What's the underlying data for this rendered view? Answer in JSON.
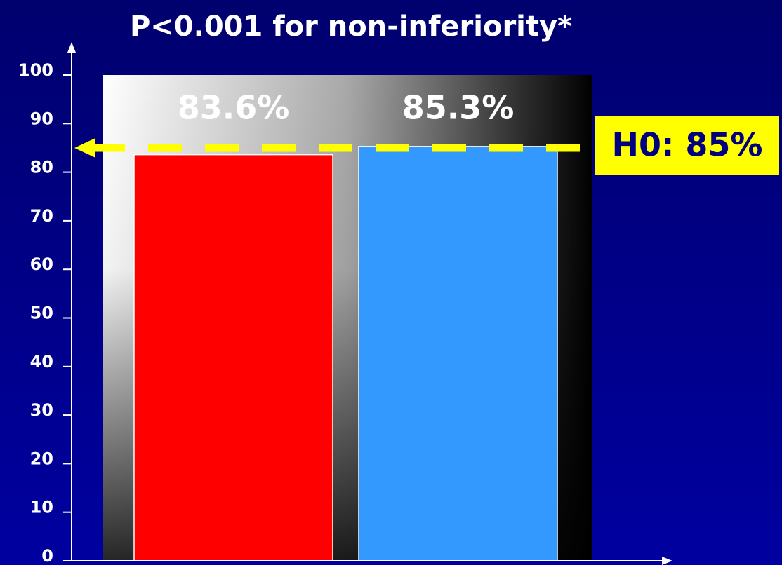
{
  "chart_data": {
    "type": "bar",
    "title": "P<0.001 for non-inferiority*",
    "categories": [
      null,
      null
    ],
    "series": [
      {
        "colors": [
          "#ff0000",
          "#3399ff"
        ],
        "values": [
          83.6,
          85.3
        ],
        "value_labels": [
          "83.6%",
          "85.3%"
        ]
      }
    ],
    "ylim": [
      0,
      100
    ],
    "yticks": [
      0,
      10,
      20,
      30,
      40,
      50,
      60,
      70,
      80,
      90,
      100
    ],
    "reference_line": {
      "value": 85,
      "label": "H0: 85%",
      "color": "#ffff00"
    }
  }
}
